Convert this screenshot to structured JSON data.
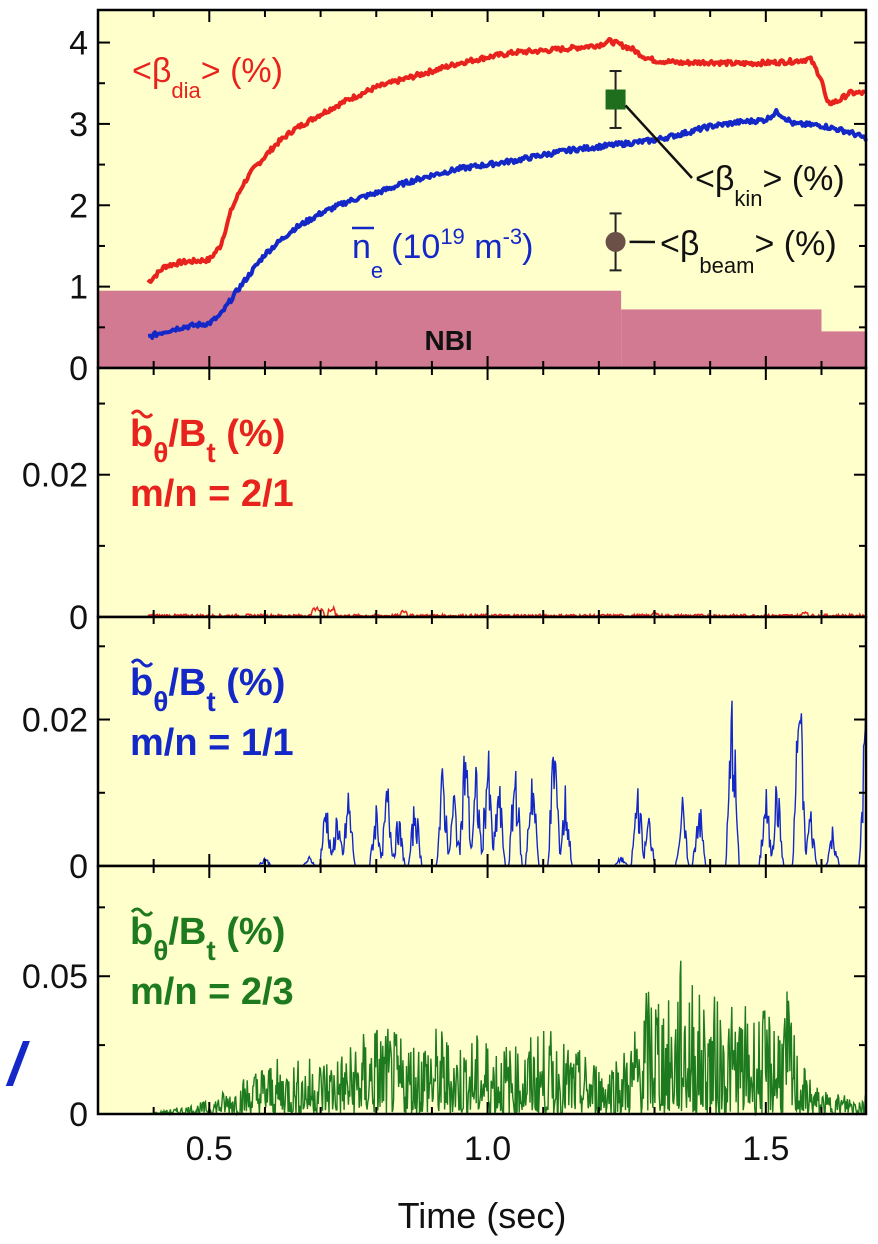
{
  "colors": {
    "background": "#ffffcc",
    "red": "#e8231e",
    "blue": "#1428c8",
    "green": "#1e7a1e",
    "nbi": "#d27a92",
    "axis": "#000000",
    "marker_kin": "#1e6e1e",
    "marker_beam": "#6b5048"
  },
  "chart_data": [
    {
      "type": "line",
      "panel": "top",
      "xlim": [
        0.3,
        1.68
      ],
      "ylim": [
        0,
        4.4
      ],
      "yticks": [
        "0",
        "1",
        "2",
        "3",
        "4"
      ],
      "series": [
        {
          "name": "<βdia> (%)",
          "color": "#e8231e",
          "x": [
            0.39,
            0.42,
            0.45,
            0.5,
            0.52,
            0.54,
            0.56,
            0.58,
            0.6,
            0.62,
            0.65,
            0.7,
            0.75,
            0.8,
            0.85,
            0.9,
            0.95,
            1.0,
            1.05,
            1.1,
            1.15,
            1.2,
            1.22,
            1.24,
            1.26,
            1.28,
            1.3,
            1.35,
            1.4,
            1.45,
            1.5,
            1.55,
            1.58,
            1.6,
            1.61,
            1.63,
            1.65,
            1.68
          ],
          "y": [
            1.05,
            1.25,
            1.3,
            1.33,
            1.5,
            1.95,
            2.25,
            2.45,
            2.6,
            2.75,
            2.92,
            3.12,
            3.3,
            3.45,
            3.55,
            3.65,
            3.75,
            3.82,
            3.88,
            3.9,
            3.93,
            3.97,
            4.02,
            3.97,
            3.92,
            3.83,
            3.78,
            3.75,
            3.76,
            3.74,
            3.75,
            3.77,
            3.8,
            3.55,
            3.25,
            3.28,
            3.38,
            3.38
          ]
        },
        {
          "name": "ne (10^19 m^-3)",
          "color": "#1428c8",
          "x": [
            0.39,
            0.42,
            0.45,
            0.5,
            0.52,
            0.55,
            0.6,
            0.65,
            0.7,
            0.75,
            0.8,
            0.85,
            0.9,
            0.95,
            1.0,
            1.05,
            1.1,
            1.15,
            1.2,
            1.25,
            1.3,
            1.35,
            1.4,
            1.45,
            1.5,
            1.52,
            1.55,
            1.6,
            1.65,
            1.68
          ],
          "y": [
            0.38,
            0.45,
            0.5,
            0.55,
            0.65,
            0.95,
            1.4,
            1.7,
            1.9,
            2.05,
            2.15,
            2.27,
            2.37,
            2.45,
            2.5,
            2.55,
            2.62,
            2.68,
            2.72,
            2.76,
            2.8,
            2.88,
            2.97,
            3.02,
            3.05,
            3.15,
            3.0,
            2.98,
            2.9,
            2.82
          ]
        }
      ],
      "nbi": {
        "label": "NBI",
        "steps": [
          {
            "x0": 0.3,
            "x1": 1.24,
            "y": 0.95
          },
          {
            "x0": 1.24,
            "x1": 1.6,
            "y": 0.72
          },
          {
            "x0": 1.6,
            "x1": 1.68,
            "y": 0.45
          }
        ]
      },
      "points": [
        {
          "name": "<βkin> (%)",
          "x": 1.23,
          "y": 3.3,
          "yerr": 0.35,
          "marker": "square"
        },
        {
          "name": "<βbeam> (%)",
          "x": 1.23,
          "y": 1.55,
          "yerr": 0.35,
          "marker": "circle"
        }
      ],
      "labels": {
        "beta_dia": "<β",
        "beta_dia_sub": "dia",
        "beta_dia_tail": "> (%)",
        "ne_main": "n",
        "ne_sub": "e",
        "ne_paren": "(10",
        "ne_exp1": "19",
        "ne_m": " m",
        "ne_exp2": "-3",
        "ne_close": ")",
        "beta_kin": "<β",
        "beta_kin_sub": "kin",
        "beta_kin_tail": "> (%)",
        "beta_beam": "<β",
        "beta_beam_sub": "beam",
        "beta_beam_tail": "> (%)"
      }
    },
    {
      "type": "line",
      "panel": "p2",
      "color": "#e8231e",
      "xlim": [
        0.3,
        1.68
      ],
      "ylim": [
        0,
        0.035
      ],
      "yticks": [
        "0",
        "0.02"
      ],
      "ytick_values": [
        0,
        0.02
      ],
      "label": {
        "b": "b",
        "sub_theta": "θ",
        "slash": "/B",
        "sub_t": "t",
        "pct": " (%)",
        "mode": "m/n = 2/1"
      },
      "bursts": [
        [
          0.69,
          0.0018
        ],
        [
          0.7,
          0.0012
        ],
        [
          0.72,
          0.0014
        ],
        [
          0.85,
          0.0012
        ],
        [
          1.3,
          0.0007
        ],
        [
          1.57,
          0.0008
        ]
      ],
      "noise_level": 0.0004,
      "x_range": [
        0.39,
        1.68
      ]
    },
    {
      "type": "line",
      "panel": "p3",
      "color": "#1428c8",
      "xlim": [
        0.3,
        1.68
      ],
      "ylim": [
        0,
        0.034
      ],
      "yticks": [
        "0",
        "0.02"
      ],
      "ytick_values": [
        0,
        0.02
      ],
      "label": {
        "b": "b",
        "sub_theta": "θ",
        "slash": "/B",
        "sub_t": "t",
        "pct": " (%)",
        "mode": "m/n = 1/1"
      },
      "spikes": [
        [
          0.6,
          0.0015
        ],
        [
          0.68,
          0.0014
        ],
        [
          0.71,
          0.011
        ],
        [
          0.73,
          0.009
        ],
        [
          0.75,
          0.012
        ],
        [
          0.8,
          0.01
        ],
        [
          0.82,
          0.013
        ],
        [
          0.84,
          0.008
        ],
        [
          0.87,
          0.011
        ],
        [
          0.92,
          0.016
        ],
        [
          0.94,
          0.012
        ],
        [
          0.96,
          0.021
        ],
        [
          0.98,
          0.015
        ],
        [
          1.0,
          0.019
        ],
        [
          1.02,
          0.014
        ],
        [
          1.05,
          0.018
        ],
        [
          1.08,
          0.017
        ],
        [
          1.12,
          0.022
        ],
        [
          1.14,
          0.012
        ],
        [
          1.24,
          0.0015
        ],
        [
          1.27,
          0.014
        ],
        [
          1.29,
          0.008
        ],
        [
          1.35,
          0.01
        ],
        [
          1.38,
          0.011
        ],
        [
          1.44,
          0.028
        ],
        [
          1.5,
          0.012
        ],
        [
          1.52,
          0.014
        ],
        [
          1.56,
          0.032
        ],
        [
          1.58,
          0.009
        ],
        [
          1.62,
          0.006
        ],
        [
          1.68,
          0.028
        ]
      ],
      "x_range": [
        0.39,
        1.68
      ]
    },
    {
      "type": "line",
      "panel": "p4",
      "color": "#1e7a1e",
      "xlim": [
        0.3,
        1.68
      ],
      "ylim": [
        0,
        0.09
      ],
      "yticks": [
        "0",
        "0.05"
      ],
      "ytick_values": [
        0,
        0.05
      ],
      "label": {
        "b": "b",
        "sub_theta": "θ",
        "slash": "/B",
        "sub_t": "t",
        "pct": " (%)",
        "mode": "m/n = 2/3"
      },
      "envelope": [
        [
          0.39,
          0.0
        ],
        [
          0.5,
          0.005
        ],
        [
          0.55,
          0.012
        ],
        [
          0.6,
          0.02
        ],
        [
          0.65,
          0.02
        ],
        [
          0.7,
          0.022
        ],
        [
          0.75,
          0.025
        ],
        [
          0.8,
          0.035
        ],
        [
          0.85,
          0.028
        ],
        [
          0.9,
          0.033
        ],
        [
          0.95,
          0.028
        ],
        [
          1.0,
          0.03
        ],
        [
          1.05,
          0.025
        ],
        [
          1.1,
          0.032
        ],
        [
          1.15,
          0.025
        ],
        [
          1.2,
          0.02
        ],
        [
          1.25,
          0.025
        ],
        [
          1.3,
          0.055
        ],
        [
          1.33,
          0.04
        ],
        [
          1.35,
          0.06
        ],
        [
          1.38,
          0.045
        ],
        [
          1.45,
          0.04
        ],
        [
          1.5,
          0.038
        ],
        [
          1.54,
          0.045
        ],
        [
          1.56,
          0.02
        ],
        [
          1.6,
          0.008
        ],
        [
          1.68,
          0.008
        ]
      ],
      "x_range": [
        0.39,
        1.68
      ]
    }
  ],
  "x_axis": {
    "title": "Time (sec)",
    "ticks": [
      {
        "value": 0.5,
        "label": "0.5"
      },
      {
        "value": 1.0,
        "label": "1.0"
      },
      {
        "value": 1.5,
        "label": "1.5"
      }
    ]
  },
  "stray_mark": "/"
}
